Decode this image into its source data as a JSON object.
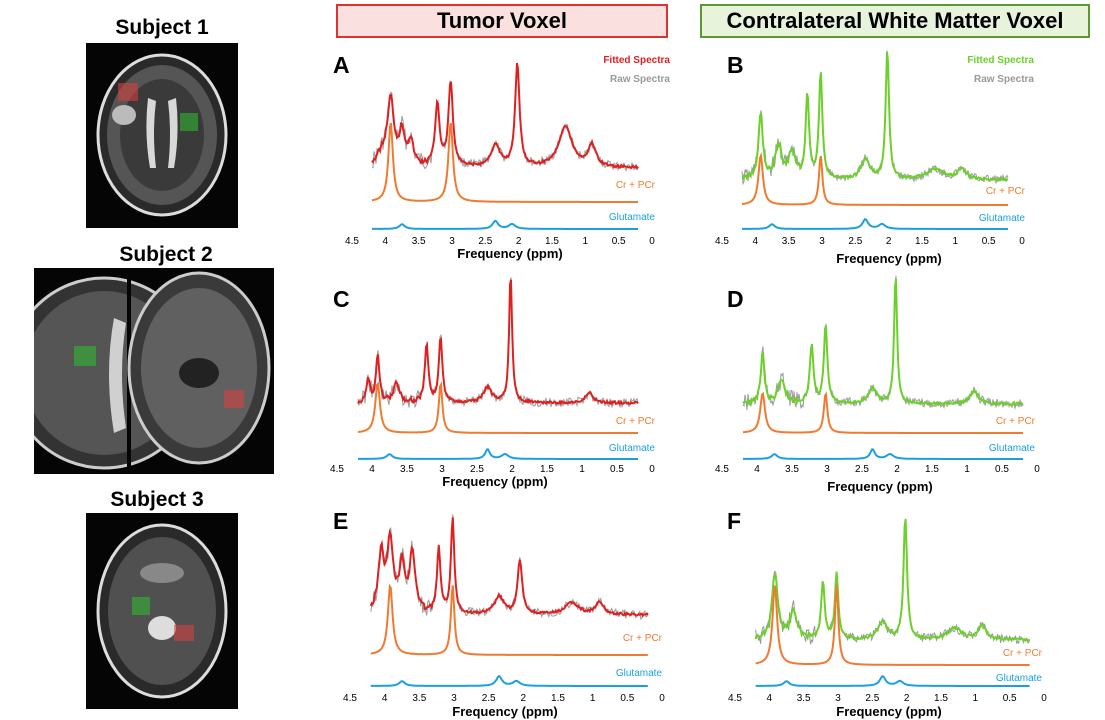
{
  "subjects": [
    "Subject 1",
    "Subject 2",
    "Subject 3"
  ],
  "headers": {
    "tumor": "Tumor Voxel",
    "contralateral": "Contralateral White Matter Voxel"
  },
  "legend": {
    "fitted": "Fitted Spectra",
    "raw": "Raw Spectra"
  },
  "curve_labels": {
    "cr": "Cr + PCr",
    "glu": "Glutamate"
  },
  "axis": {
    "xlabel": "Frequency (ppm)",
    "ticks": [
      "4.5",
      "4",
      "3.5",
      "3",
      "2.5",
      "2",
      "1.5",
      "1",
      "0.5",
      "0"
    ]
  },
  "colors": {
    "tumor": "#e02020",
    "wm": "#6cd02a",
    "raw": "#999999",
    "cr": "#f07a30",
    "glu": "#1aa0e0",
    "tumor_border": "#e03030",
    "wm_border": "#5a9a30",
    "tumor_fill": "#fbe0e0",
    "wm_fill": "#e8f3dc"
  },
  "chart_data": [
    {
      "panel": "A",
      "type": "line",
      "voxel": "tumor",
      "xlabel": "Frequency (ppm)",
      "xlim": [
        4.5,
        0
      ],
      "series": [
        {
          "name": "Fitted Spectra",
          "peaks": [
            [
              4.05,
              0.1,
              0.1
            ],
            [
              3.92,
              0.06,
              0.6
            ],
            [
              3.75,
              0.05,
              0.3
            ],
            [
              3.62,
              0.05,
              0.22
            ],
            [
              3.22,
              0.04,
              0.58
            ],
            [
              3.02,
              0.04,
              0.78
            ],
            [
              2.35,
              0.08,
              0.2
            ],
            [
              2.02,
              0.04,
              0.95
            ],
            [
              1.3,
              0.12,
              0.38
            ],
            [
              0.9,
              0.07,
              0.2
            ]
          ]
        },
        {
          "name": "Cr + PCr",
          "peaks": [
            [
              3.92,
              0.04,
              1.0
            ],
            [
              3.02,
              0.04,
              1.0
            ]
          ]
        },
        {
          "name": "Glutamate",
          "peaks": [
            [
              3.75,
              0.05,
              0.3
            ],
            [
              2.35,
              0.05,
              0.5
            ],
            [
              2.1,
              0.06,
              0.3
            ]
          ]
        }
      ]
    },
    {
      "panel": "B",
      "type": "line",
      "voxel": "contralateral white matter",
      "xlabel": "Frequency (ppm)",
      "xlim": [
        4.5,
        0
      ],
      "series": [
        {
          "name": "Fitted Spectra",
          "peaks": [
            [
              3.92,
              0.04,
              0.5
            ],
            [
              3.65,
              0.06,
              0.25
            ],
            [
              3.45,
              0.06,
              0.2
            ],
            [
              3.22,
              0.03,
              0.65
            ],
            [
              3.02,
              0.03,
              0.82
            ],
            [
              2.35,
              0.08,
              0.15
            ],
            [
              2.02,
              0.03,
              1.0
            ],
            [
              1.3,
              0.15,
              0.08
            ],
            [
              0.9,
              0.08,
              0.08
            ]
          ]
        },
        {
          "name": "Cr + PCr",
          "peaks": [
            [
              3.92,
              0.04,
              1.0
            ],
            [
              3.02,
              0.03,
              1.0
            ]
          ]
        },
        {
          "name": "Glutamate",
          "peaks": [
            [
              3.75,
              0.05,
              0.3
            ],
            [
              2.35,
              0.05,
              0.6
            ],
            [
              2.1,
              0.06,
              0.3
            ]
          ]
        }
      ]
    },
    {
      "panel": "C",
      "type": "line",
      "voxel": "tumor",
      "xlabel": "Frequency (ppm)",
      "xlim": [
        4.5,
        0
      ],
      "series": [
        {
          "name": "Fitted Spectra",
          "peaks": [
            [
              4.05,
              0.03,
              0.18
            ],
            [
              3.92,
              0.03,
              0.35
            ],
            [
              3.65,
              0.05,
              0.15
            ],
            [
              3.22,
              0.03,
              0.45
            ],
            [
              3.02,
              0.03,
              0.5
            ],
            [
              2.35,
              0.07,
              0.12
            ],
            [
              2.02,
              0.025,
              1.0
            ],
            [
              0.9,
              0.06,
              0.08
            ]
          ]
        },
        {
          "name": "Cr + PCr",
          "peaks": [
            [
              3.92,
              0.04,
              1.0
            ],
            [
              3.02,
              0.03,
              1.0
            ]
          ]
        },
        {
          "name": "Glutamate",
          "peaks": [
            [
              3.75,
              0.05,
              0.3
            ],
            [
              2.35,
              0.04,
              0.6
            ],
            [
              2.1,
              0.06,
              0.3
            ]
          ]
        }
      ]
    },
    {
      "panel": "D",
      "type": "line",
      "voxel": "contralateral white matter",
      "xlabel": "Frequency (ppm)",
      "xlim": [
        4.5,
        0
      ],
      "series": [
        {
          "name": "Fitted Spectra",
          "peaks": [
            [
              3.92,
              0.03,
              0.4
            ],
            [
              3.65,
              0.06,
              0.18
            ],
            [
              3.22,
              0.03,
              0.45
            ],
            [
              3.02,
              0.03,
              0.6
            ],
            [
              2.35,
              0.07,
              0.12
            ],
            [
              2.02,
              0.025,
              1.0
            ],
            [
              0.9,
              0.07,
              0.1
            ]
          ]
        },
        {
          "name": "Cr + PCr",
          "peaks": [
            [
              3.92,
              0.04,
              1.0
            ],
            [
              3.02,
              0.03,
              1.0
            ]
          ]
        },
        {
          "name": "Glutamate",
          "peaks": [
            [
              3.75,
              0.05,
              0.3
            ],
            [
              2.35,
              0.04,
              0.6
            ],
            [
              2.1,
              0.06,
              0.3
            ]
          ]
        }
      ]
    },
    {
      "panel": "E",
      "type": "line",
      "voxel": "tumor",
      "xlabel": "Frequency (ppm)",
      "xlim": [
        4.5,
        0
      ],
      "series": [
        {
          "name": "Fitted Spectra",
          "peaks": [
            [
              4.05,
              0.05,
              0.5
            ],
            [
              3.92,
              0.05,
              0.6
            ],
            [
              3.75,
              0.05,
              0.4
            ],
            [
              3.6,
              0.05,
              0.5
            ],
            [
              3.22,
              0.03,
              0.55
            ],
            [
              3.02,
              0.03,
              0.8
            ],
            [
              2.35,
              0.08,
              0.15
            ],
            [
              2.05,
              0.04,
              0.45
            ],
            [
              1.3,
              0.12,
              0.1
            ],
            [
              0.9,
              0.07,
              0.1
            ]
          ]
        },
        {
          "name": "Cr + PCr",
          "peaks": [
            [
              3.92,
              0.04,
              1.0
            ],
            [
              3.02,
              0.03,
              1.0
            ]
          ]
        },
        {
          "name": "Glutamate",
          "peaks": [
            [
              3.75,
              0.05,
              0.3
            ],
            [
              2.35,
              0.05,
              0.6
            ],
            [
              2.1,
              0.06,
              0.3
            ]
          ]
        }
      ]
    },
    {
      "panel": "F",
      "type": "line",
      "voxel": "contralateral white matter",
      "xlabel": "Frequency (ppm)",
      "xlim": [
        4.5,
        0
      ],
      "series": [
        {
          "name": "Fitted Spectra",
          "peaks": [
            [
              3.92,
              0.05,
              0.45
            ],
            [
              3.65,
              0.06,
              0.2
            ],
            [
              3.22,
              0.03,
              0.4
            ],
            [
              3.02,
              0.03,
              0.45
            ],
            [
              2.35,
              0.08,
              0.12
            ],
            [
              2.02,
              0.03,
              0.85
            ],
            [
              1.3,
              0.12,
              0.08
            ],
            [
              0.9,
              0.07,
              0.1
            ]
          ]
        },
        {
          "name": "Cr + PCr",
          "peaks": [
            [
              3.92,
              0.04,
              1.0
            ],
            [
              3.02,
              0.03,
              1.0
            ]
          ]
        },
        {
          "name": "Glutamate",
          "peaks": [
            [
              3.75,
              0.05,
              0.3
            ],
            [
              2.35,
              0.05,
              0.6
            ],
            [
              2.1,
              0.06,
              0.3
            ]
          ]
        }
      ]
    }
  ]
}
